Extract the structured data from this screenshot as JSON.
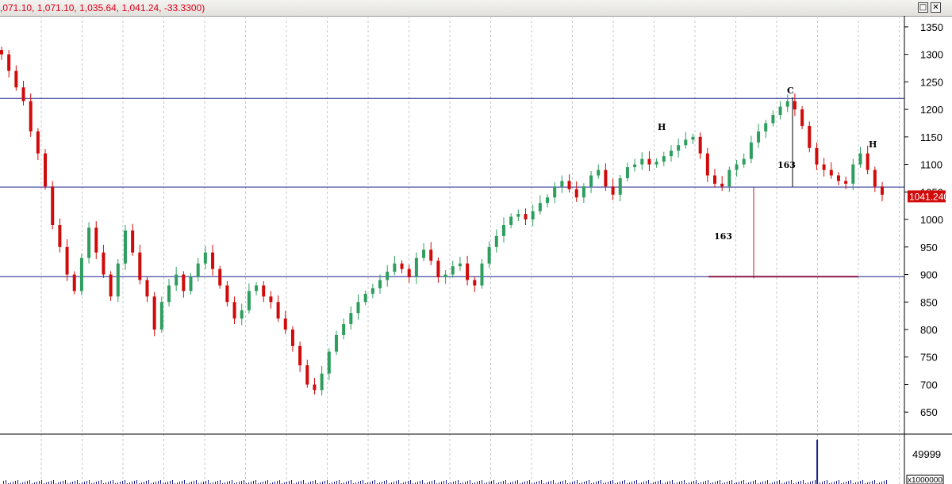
{
  "header": {
    "ohlc_text": ",071.10, 1,071.10, 1,035.64, 1,041.24, -33.3300)",
    "restore_glyph": "□",
    "close_glyph": "✕"
  },
  "colors": {
    "up": "#2e9e5e",
    "down": "#d10a0a",
    "level_line": "#1b1f8c",
    "grid": "#c8c8c8",
    "price_badge": "#d10a0a"
  },
  "chart_data": [
    {
      "type": "candlestick",
      "ylim": [
        610,
        1370
      ],
      "y_ticks": [
        650,
        700,
        750,
        800,
        850,
        900,
        950,
        1000,
        1050,
        1100,
        1150,
        1200,
        1250,
        1300,
        1350
      ],
      "grid": "vertical-dashed",
      "last_price_label": "1041.240",
      "last_price": 1041.24,
      "horizontal_levels": [
        1220,
        1059,
        896
      ],
      "closes": [
        1300,
        1270,
        1240,
        1215,
        1160,
        1120,
        1060,
        990,
        950,
        900,
        870,
        930,
        985,
        940,
        900,
        860,
        920,
        980,
        940,
        890,
        860,
        800,
        850,
        880,
        900,
        870,
        895,
        920,
        940,
        910,
        880,
        850,
        820,
        835,
        870,
        880,
        860,
        850,
        820,
        800,
        770,
        735,
        700,
        690,
        720,
        760,
        790,
        810,
        830,
        850,
        865,
        875,
        890,
        905,
        920,
        910,
        895,
        930,
        945,
        925,
        895,
        900,
        915,
        920,
        890,
        880,
        920,
        950,
        970,
        990,
        1005,
        1010,
        1000,
        1015,
        1030,
        1040,
        1060,
        1070,
        1055,
        1040,
        1060,
        1080,
        1090,
        1060,
        1045,
        1075,
        1095,
        1100,
        1110,
        1100,
        1105,
        1115,
        1125,
        1135,
        1145,
        1150,
        1120,
        1080,
        1065,
        1060,
        1090,
        1100,
        1110,
        1140,
        1160,
        1175,
        1190,
        1205,
        1215,
        1200,
        1170,
        1130,
        1100,
        1090,
        1080,
        1070,
        1065,
        1100,
        1120,
        1090,
        1060,
        1045
      ]
    },
    {
      "type": "bar",
      "name": "volume",
      "y_tick_label": "49999",
      "unit_label": "x1000000",
      "spike_index": 110
    }
  ],
  "annotations": {
    "c_label": "C",
    "h_left_label": "H",
    "h_right_label": "H",
    "range_upper_label": "163",
    "range_lower_label": "163"
  }
}
